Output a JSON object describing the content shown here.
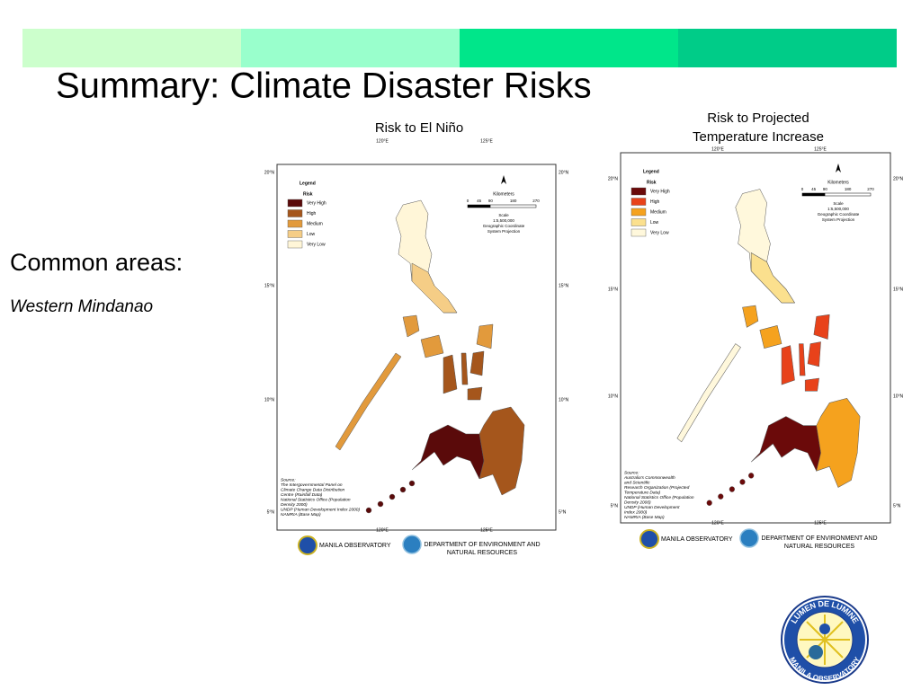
{
  "title": "Summary: Climate Disaster Risks",
  "sidebar": {
    "heading": "Common areas:",
    "item": "Western Mindanao"
  },
  "maps": [
    {
      "title_lines": [
        "Risk to El Niño"
      ],
      "legend_title": "Legend",
      "legend_subtitle": "Risk",
      "legend": [
        {
          "label": "Very High",
          "color": "#5a0a0a"
        },
        {
          "label": "High",
          "color": "#a5561c"
        },
        {
          "label": "Medium",
          "color": "#e29a3c"
        },
        {
          "label": "Low",
          "color": "#f5cd86"
        },
        {
          "label": "Very Low",
          "color": "#fff6d8"
        }
      ],
      "scale_unit": "Kilometers",
      "scale_ticks": [
        0,
        45,
        90,
        180,
        270
      ],
      "scale_lines": [
        "Scale",
        "1:5,500,000",
        "Geographic Coordinate",
        "System Projection"
      ],
      "lat_labels": [
        "20°N",
        "15°N",
        "10°N",
        "5°N"
      ],
      "lon_labels": [
        "120°E",
        "125°E"
      ],
      "source_lines": [
        "Source:",
        "The Intergovernmental Panel on",
        "Climate Change Data Distribution",
        "Centre (Rainfall Data)",
        "National Statistics Office (Population",
        "Density 2000)",
        "UNDP (Human Development Index 2000)",
        "NAMRIA (Base Map)"
      ],
      "footer": {
        "org1": "MANILA OBSERVATORY",
        "org2_lines": [
          "DEPARTMENT OF ENVIRONMENT AND",
          "NATURAL RESOURCES"
        ]
      }
    },
    {
      "title_lines": [
        "Risk to Projected",
        "Temperature Increase"
      ],
      "legend_title": "Legend",
      "legend_subtitle": "Risk",
      "legend": [
        {
          "label": "Very High",
          "color": "#6b0a0a"
        },
        {
          "label": "High",
          "color": "#e8421a"
        },
        {
          "label": "Medium",
          "color": "#f5a21e"
        },
        {
          "label": "Low",
          "color": "#fbe08e"
        },
        {
          "label": "Very Low",
          "color": "#fff8dc"
        }
      ],
      "scale_unit": "Kilometers",
      "scale_ticks": [
        0,
        45,
        90,
        180,
        270
      ],
      "scale_lines": [
        "Scale",
        "1:5,500,000",
        "Geographic Coordinate",
        "System Projection"
      ],
      "lat_labels": [
        "20°N",
        "15°N",
        "10°N",
        "5°N"
      ],
      "lon_labels": [
        "120°E",
        "125°E"
      ],
      "source_lines": [
        "Source:",
        "Australia's Commonwealth",
        "and Scientific",
        "Research Organization (Projected",
        "Temperature Data)",
        "National Statistics Office (Population",
        "Density 2000)",
        "UNDP (Human Development",
        "Index 2000)",
        "NAMRIA (Base Map)"
      ],
      "footer": {
        "org1": "MANILA OBSERVATORY",
        "org2_lines": [
          "DEPARTMENT OF ENVIRONMENT AND",
          "NATURAL RESOURCES"
        ]
      }
    }
  ],
  "badge": {
    "top": "LUMEN DE LUMINE",
    "bottom": "MANILA OBSERVATORY"
  }
}
